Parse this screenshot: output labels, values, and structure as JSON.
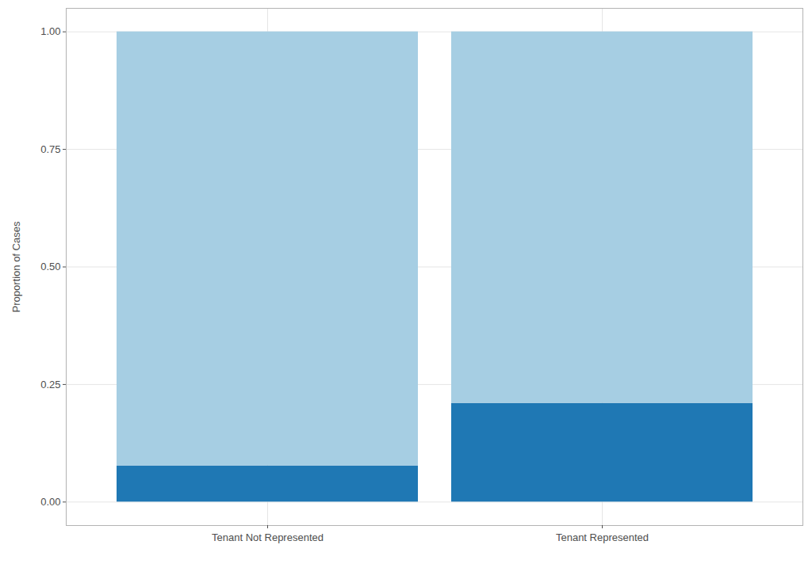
{
  "chart_data": {
    "type": "bar",
    "stacked": true,
    "grid": true,
    "categories": [
      "Tenant Not Represented",
      "Tenant Represented"
    ],
    "series": [
      {
        "color": "#1f78b4",
        "values": [
          0.077,
          0.21
        ]
      },
      {
        "color": "#a6cee3",
        "values": [
          0.923,
          0.79
        ]
      }
    ],
    "y_label": "Proportion of Cases",
    "ylim": [
      -0.05,
      1.05
    ],
    "yticks": [
      {
        "value": 0,
        "label": "0.00"
      },
      {
        "value": 0.25,
        "label": "0.25"
      },
      {
        "value": 0.5,
        "label": "0.50"
      },
      {
        "value": 0.75,
        "label": "0.75"
      },
      {
        "value": 1,
        "label": "1.00"
      }
    ]
  }
}
